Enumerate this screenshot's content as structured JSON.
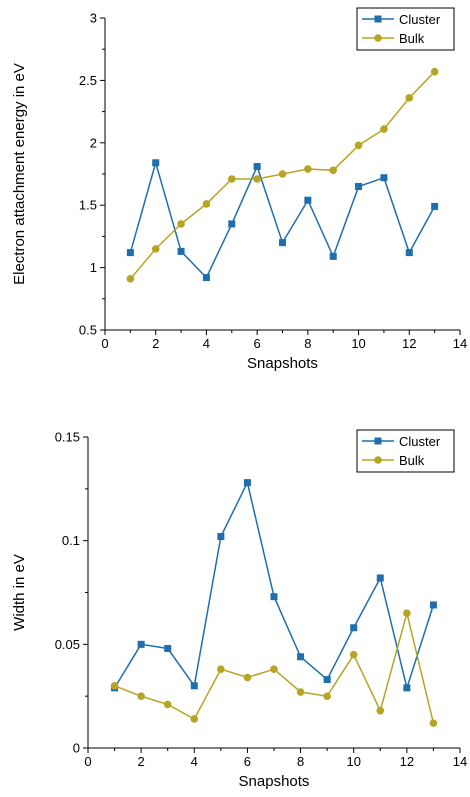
{
  "colors": {
    "cluster": "#1f6eaf",
    "bulk": "#b5a523"
  },
  "chart_data": [
    {
      "type": "line",
      "title": "",
      "xlabel": "Snapshots",
      "ylabel": "Electron attachment energy in eV",
      "xlim": [
        0,
        14
      ],
      "ylim": [
        0.5,
        3
      ],
      "xticks": [
        0,
        2,
        4,
        6,
        8,
        10,
        12,
        14
      ],
      "yticks": [
        0.5,
        1,
        1.5,
        2,
        2.5,
        3
      ],
      "ytick_labels": [
        "0.5",
        "1",
        "1.5",
        "2",
        "2.5",
        "3"
      ],
      "legend": "top-right",
      "grid": false,
      "x": [
        1,
        2,
        3,
        4,
        5,
        6,
        7,
        8,
        9,
        10,
        11,
        12,
        13
      ],
      "series": [
        {
          "name": "Cluster",
          "marker": "square",
          "values": [
            1.12,
            1.84,
            1.13,
            0.92,
            1.35,
            1.81,
            1.2,
            1.54,
            1.09,
            1.65,
            1.72,
            1.12,
            1.49
          ]
        },
        {
          "name": "Bulk",
          "marker": "circle",
          "values": [
            0.91,
            1.15,
            1.35,
            1.51,
            1.71,
            1.71,
            1.75,
            1.79,
            1.78,
            1.98,
            2.11,
            2.36,
            2.57
          ]
        }
      ]
    },
    {
      "type": "line",
      "title": "",
      "xlabel": "Snapshots",
      "ylabel": "Width in eV",
      "xlim": [
        0,
        14
      ],
      "ylim": [
        0,
        0.15
      ],
      "xticks": [
        0,
        2,
        4,
        6,
        8,
        10,
        12,
        14
      ],
      "yticks": [
        0,
        0.05,
        0.1,
        0.15
      ],
      "ytick_labels": [
        "0",
        "0.05",
        "0.1",
        "0.15"
      ],
      "legend": "top-right",
      "grid": false,
      "x": [
        1,
        2,
        3,
        4,
        5,
        6,
        7,
        8,
        9,
        10,
        11,
        12,
        13
      ],
      "series": [
        {
          "name": "Cluster",
          "marker": "square",
          "values": [
            0.029,
            0.05,
            0.048,
            0.03,
            0.102,
            0.128,
            0.073,
            0.044,
            0.033,
            0.058,
            0.082,
            0.029,
            0.069
          ]
        },
        {
          "name": "Bulk",
          "marker": "circle",
          "values": [
            0.03,
            0.025,
            0.021,
            0.014,
            0.038,
            0.034,
            0.038,
            0.027,
            0.025,
            0.045,
            0.018,
            0.065,
            0.012
          ]
        }
      ]
    }
  ]
}
